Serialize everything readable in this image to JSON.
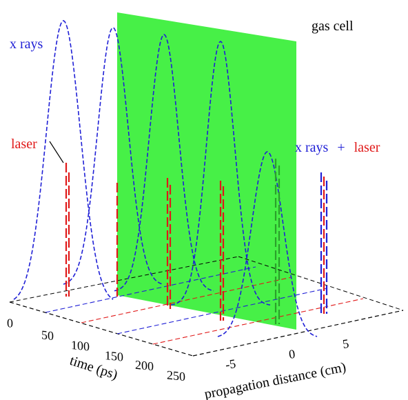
{
  "labels": {
    "x_rays": "x rays",
    "laser": "laser",
    "gas_cell": "gas cell",
    "x_rays_combined": "x rays",
    "plus": "+",
    "laser_combined": "laser"
  },
  "colors": {
    "xray": "#1f1fd6",
    "laser": "#e01818",
    "gas_cell": "#33ee33",
    "axis": "#000000"
  },
  "axes": {
    "time": {
      "label": "time (ps)",
      "ticks": [
        "0",
        "50",
        "100",
        "150",
        "200",
        "250"
      ]
    },
    "distance": {
      "label": "propagation distance (cm)",
      "ticks": [
        "-5",
        "0",
        "5"
      ]
    }
  }
}
